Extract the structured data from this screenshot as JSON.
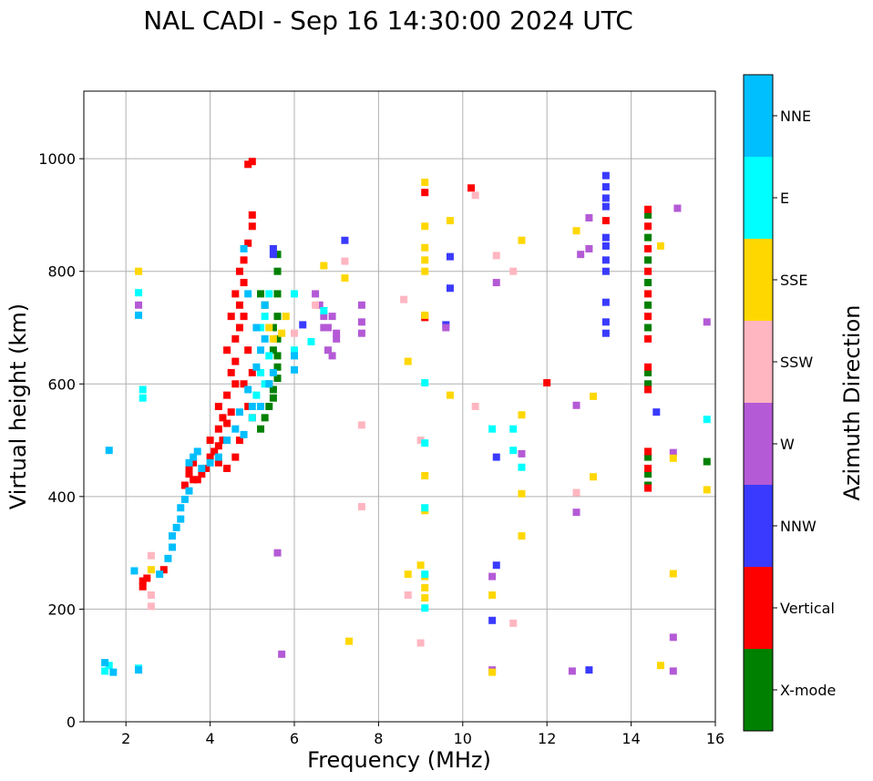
{
  "chart_data": {
    "type": "scatter",
    "title": "NAL CADI - Sep 16 14:30:00 2024 UTC",
    "xlabel": "Frequency (MHz)",
    "ylabel": "Virtual height (km)",
    "xlim": [
      1,
      16
    ],
    "ylim": [
      0,
      1120
    ],
    "xticks": [
      2,
      4,
      6,
      8,
      10,
      12,
      14,
      16
    ],
    "yticks": [
      0,
      200,
      400,
      600,
      800,
      1000
    ],
    "grid": true,
    "colorbar": {
      "label": "Azimuth Direction",
      "categories": [
        {
          "name": "X-mode",
          "color": "#008000"
        },
        {
          "name": "Vertical",
          "color": "#ff0000"
        },
        {
          "name": "NNW",
          "color": "#3a3aff"
        },
        {
          "name": "W",
          "color": "#b45ad6"
        },
        {
          "name": "SSW",
          "color": "#ffb6c1"
        },
        {
          "name": "SSE",
          "color": "#ffd700"
        },
        {
          "name": "E",
          "color": "#00ffff"
        },
        {
          "name": "NNE",
          "color": "#00bfff"
        }
      ]
    },
    "series": [
      {
        "name": "X-mode",
        "points": [
          [
            5.2,
            520
          ],
          [
            5.3,
            540
          ],
          [
            5.4,
            560
          ],
          [
            5.5,
            575
          ],
          [
            5.5,
            590
          ],
          [
            5.6,
            610
          ],
          [
            5.6,
            630
          ],
          [
            5.6,
            650
          ],
          [
            5.5,
            660
          ],
          [
            5.6,
            680
          ],
          [
            5.5,
            700
          ],
          [
            5.6,
            720
          ],
          [
            5.6,
            760
          ],
          [
            5.6,
            800
          ],
          [
            5.6,
            830
          ],
          [
            5.2,
            760
          ],
          [
            5.3,
            740
          ],
          [
            5.4,
            600
          ],
          [
            15.8,
            462
          ],
          [
            14.4,
            900
          ],
          [
            14.4,
            860
          ],
          [
            14.4,
            820
          ],
          [
            14.4,
            780
          ],
          [
            14.4,
            740
          ],
          [
            14.4,
            700
          ],
          [
            14.4,
            620
          ],
          [
            14.4,
            600
          ],
          [
            14.4,
            470
          ],
          [
            14.4,
            440
          ],
          [
            14.4,
            420
          ]
        ]
      },
      {
        "name": "Vertical",
        "points": [
          [
            2.4,
            240
          ],
          [
            2.4,
            250
          ],
          [
            2.5,
            255
          ],
          [
            2.9,
            270
          ],
          [
            3.4,
            420
          ],
          [
            3.5,
            440
          ],
          [
            3.5,
            450
          ],
          [
            3.6,
            460
          ],
          [
            3.7,
            430
          ],
          [
            3.8,
            440
          ],
          [
            3.9,
            450
          ],
          [
            4.0,
            470
          ],
          [
            4.1,
            480
          ],
          [
            4.0,
            500
          ],
          [
            4.2,
            490
          ],
          [
            4.3,
            500
          ],
          [
            4.2,
            520
          ],
          [
            4.3,
            540
          ],
          [
            4.2,
            560
          ],
          [
            4.4,
            530
          ],
          [
            4.5,
            550
          ],
          [
            4.4,
            580
          ],
          [
            4.6,
            600
          ],
          [
            4.5,
            620
          ],
          [
            4.6,
            640
          ],
          [
            4.4,
            660
          ],
          [
            4.6,
            680
          ],
          [
            4.7,
            700
          ],
          [
            4.5,
            720
          ],
          [
            4.7,
            740
          ],
          [
            4.6,
            760
          ],
          [
            4.8,
            780
          ],
          [
            4.7,
            800
          ],
          [
            4.8,
            820
          ],
          [
            4.9,
            850
          ],
          [
            5.0,
            880
          ],
          [
            5.0,
            900
          ],
          [
            4.9,
            990
          ],
          [
            5.0,
            995
          ],
          [
            4.8,
            720
          ],
          [
            4.9,
            660
          ],
          [
            5.0,
            620
          ],
          [
            4.8,
            600
          ],
          [
            4.9,
            560
          ],
          [
            5.0,
            540
          ],
          [
            4.7,
            500
          ],
          [
            4.6,
            470
          ],
          [
            4.4,
            450
          ],
          [
            4.2,
            460
          ],
          [
            3.6,
            430
          ],
          [
            9.1,
            940
          ],
          [
            9.1,
            718
          ],
          [
            10.2,
            948
          ],
          [
            12.0,
            602
          ],
          [
            13.4,
            890
          ],
          [
            14.4,
            910
          ],
          [
            14.4,
            880
          ],
          [
            14.4,
            840
          ],
          [
            14.4,
            800
          ],
          [
            14.4,
            760
          ],
          [
            14.4,
            720
          ],
          [
            14.4,
            680
          ],
          [
            14.4,
            630
          ],
          [
            14.4,
            590
          ],
          [
            14.4,
            480
          ],
          [
            14.4,
            450
          ],
          [
            14.4,
            415
          ]
        ]
      },
      {
        "name": "NNW",
        "points": [
          [
            13.4,
            970
          ],
          [
            13.4,
            950
          ],
          [
            13.4,
            930
          ],
          [
            13.4,
            915
          ],
          [
            13.4,
            860
          ],
          [
            13.4,
            845
          ],
          [
            13.4,
            820
          ],
          [
            13.4,
            800
          ],
          [
            13.4,
            745
          ],
          [
            13.4,
            710
          ],
          [
            13.4,
            690
          ],
          [
            14.6,
            550
          ],
          [
            13.0,
            92
          ],
          [
            10.8,
            470
          ],
          [
            10.7,
            180
          ],
          [
            10.8,
            278
          ],
          [
            9.7,
            826
          ],
          [
            9.6,
            705
          ],
          [
            9.7,
            770
          ],
          [
            7.2,
            855
          ],
          [
            5.5,
            840
          ],
          [
            5.5,
            830
          ],
          [
            6.2,
            705
          ]
        ]
      },
      {
        "name": "W",
        "points": [
          [
            6.5,
            760
          ],
          [
            6.6,
            740
          ],
          [
            6.7,
            720
          ],
          [
            6.8,
            700
          ],
          [
            6.9,
            720
          ],
          [
            7.0,
            690
          ],
          [
            6.8,
            660
          ],
          [
            6.9,
            650
          ],
          [
            7.0,
            680
          ],
          [
            6.7,
            700
          ],
          [
            7.6,
            740
          ],
          [
            7.6,
            710
          ],
          [
            7.6,
            690
          ],
          [
            12.7,
            562
          ],
          [
            12.8,
            830
          ],
          [
            13.0,
            840
          ],
          [
            13.0,
            895
          ],
          [
            15.1,
            912
          ],
          [
            15.8,
            710
          ],
          [
            15.0,
            478
          ],
          [
            15.0,
            150
          ],
          [
            15.0,
            90
          ],
          [
            12.6,
            90
          ],
          [
            11.4,
            476
          ],
          [
            10.8,
            780
          ],
          [
            10.7,
            258
          ],
          [
            10.7,
            92
          ],
          [
            12.7,
            372
          ],
          [
            5.6,
            300
          ],
          [
            5.7,
            120
          ],
          [
            2.3,
            740
          ],
          [
            9.6,
            700
          ]
        ]
      },
      {
        "name": "SSW",
        "points": [
          [
            8.6,
            750
          ],
          [
            9.0,
            500
          ],
          [
            9.0,
            140
          ],
          [
            8.7,
            225
          ],
          [
            10.3,
            560
          ],
          [
            10.3,
            935
          ],
          [
            10.8,
            828
          ],
          [
            11.2,
            800
          ],
          [
            11.2,
            175
          ],
          [
            12.7,
            407
          ],
          [
            7.6,
            382
          ],
          [
            7.6,
            527
          ],
          [
            6.5,
            740
          ],
          [
            6.0,
            690
          ],
          [
            2.6,
            295
          ],
          [
            2.6,
            225
          ],
          [
            2.6,
            205
          ],
          [
            7.2,
            818
          ]
        ]
      },
      {
        "name": "SSE",
        "points": [
          [
            9.1,
            958
          ],
          [
            9.1,
            880
          ],
          [
            9.1,
            842
          ],
          [
            9.1,
            820
          ],
          [
            9.1,
            800
          ],
          [
            9.1,
            722
          ],
          [
            9.1,
            437
          ],
          [
            9.1,
            375
          ],
          [
            9.0,
            278
          ],
          [
            9.1,
            258
          ],
          [
            9.1,
            238
          ],
          [
            9.1,
            220
          ],
          [
            8.7,
            262
          ],
          [
            8.7,
            640
          ],
          [
            10.7,
            225
          ],
          [
            10.7,
            88
          ],
          [
            11.4,
            545
          ],
          [
            11.4,
            405
          ],
          [
            11.4,
            330
          ],
          [
            11.4,
            855
          ],
          [
            12.7,
            872
          ],
          [
            13.1,
            578
          ],
          [
            13.1,
            435
          ],
          [
            14.7,
            845
          ],
          [
            15.0,
            468
          ],
          [
            15.8,
            412
          ],
          [
            15.0,
            263
          ],
          [
            14.7,
            100
          ],
          [
            9.7,
            890
          ],
          [
            9.7,
            580
          ],
          [
            7.2,
            788
          ],
          [
            7.3,
            143
          ],
          [
            6.7,
            810
          ],
          [
            5.8,
            720
          ],
          [
            5.7,
            690
          ],
          [
            5.5,
            680
          ],
          [
            5.4,
            700
          ],
          [
            2.3,
            800
          ],
          [
            2.6,
            270
          ]
        ]
      },
      {
        "name": "E",
        "points": [
          [
            2.3,
            762
          ],
          [
            2.4,
            590
          ],
          [
            2.4,
            575
          ],
          [
            2.3,
            95
          ],
          [
            1.6,
            100
          ],
          [
            1.5,
            90
          ],
          [
            9.1,
            602
          ],
          [
            9.1,
            380
          ],
          [
            9.1,
            262
          ],
          [
            9.1,
            202
          ],
          [
            9.1,
            495
          ],
          [
            10.7,
            520
          ],
          [
            11.2,
            520
          ],
          [
            11.4,
            452
          ],
          [
            11.2,
            482
          ],
          [
            15.8,
            537
          ],
          [
            5.3,
            720
          ],
          [
            5.2,
            700
          ],
          [
            5.4,
            650
          ],
          [
            5.2,
            620
          ],
          [
            5.3,
            600
          ],
          [
            5.1,
            580
          ],
          [
            5.4,
            760
          ],
          [
            5.0,
            540
          ],
          [
            6.0,
            760
          ],
          [
            6.4,
            675
          ],
          [
            6.7,
            730
          ],
          [
            6.0,
            660
          ]
        ]
      },
      {
        "name": "NNE",
        "points": [
          [
            1.6,
            482
          ],
          [
            2.3,
            722
          ],
          [
            2.3,
            92
          ],
          [
            1.5,
            105
          ],
          [
            1.7,
            88
          ],
          [
            2.2,
            268
          ],
          [
            2.8,
            262
          ],
          [
            3.0,
            290
          ],
          [
            3.1,
            310
          ],
          [
            3.1,
            330
          ],
          [
            3.2,
            345
          ],
          [
            3.3,
            360
          ],
          [
            3.3,
            380
          ],
          [
            3.4,
            395
          ],
          [
            3.5,
            410
          ],
          [
            3.5,
            460
          ],
          [
            3.6,
            470
          ],
          [
            3.7,
            480
          ],
          [
            3.8,
            450
          ],
          [
            4.0,
            460
          ],
          [
            4.2,
            470
          ],
          [
            4.4,
            500
          ],
          [
            4.6,
            520
          ],
          [
            4.7,
            550
          ],
          [
            4.8,
            510
          ],
          [
            4.9,
            590
          ],
          [
            5.0,
            560
          ],
          [
            5.1,
            630
          ],
          [
            5.2,
            660
          ],
          [
            5.3,
            680
          ],
          [
            5.1,
            700
          ],
          [
            5.3,
            740
          ],
          [
            4.8,
            840
          ],
          [
            4.9,
            760
          ],
          [
            5.4,
            600
          ],
          [
            5.5,
            620
          ],
          [
            5.2,
            560
          ],
          [
            6.0,
            650
          ],
          [
            6.0,
            625
          ]
        ]
      }
    ]
  }
}
